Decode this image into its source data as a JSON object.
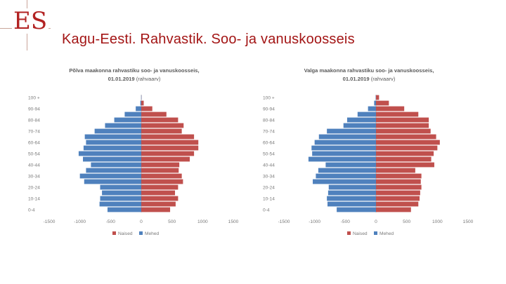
{
  "slide": {
    "logo_text": "ES",
    "title": "Kagu-Eesti. Rahvastik. Soo- ja vanuskoosseis"
  },
  "colors": {
    "female": "#c0504d",
    "male": "#4f81bd",
    "title": "#a31515"
  },
  "chart_data": [
    {
      "type": "bar",
      "orientation": "horizontal",
      "title_line1": "Põlva maakonna rahvastiku soo- ja vanuskoosseis,",
      "title_line2": "01.01.2019",
      "title_note": "(rahvaarv)",
      "categories": [
        "0-4",
        "5-9",
        "10-14",
        "15-19",
        "20-24",
        "25-29",
        "30-34",
        "35-39",
        "40-44",
        "45-49",
        "50-54",
        "55-59",
        "60-64",
        "65-69",
        "70-74",
        "75-79",
        "80-84",
        "85-89",
        "90-94",
        "95-99",
        "100 +"
      ],
      "category_labels": [
        "0-4",
        "",
        "10-14",
        "",
        "20-24",
        "",
        "30-34",
        "",
        "40-44",
        "",
        "50-54",
        "",
        "60-64",
        "",
        "70-74",
        "",
        "80-84",
        "",
        "90-94",
        "",
        "100 +"
      ],
      "series": [
        {
          "name": "Naised",
          "values": [
            470,
            560,
            600,
            550,
            600,
            680,
            660,
            610,
            620,
            790,
            860,
            930,
            930,
            860,
            660,
            690,
            600,
            410,
            180,
            40,
            5
          ]
        },
        {
          "name": "Mehed",
          "values": [
            -550,
            -680,
            -670,
            -640,
            -670,
            -930,
            -1000,
            -900,
            -820,
            -950,
            -1020,
            -940,
            -900,
            -920,
            -760,
            -590,
            -440,
            -270,
            -90,
            -15,
            -2
          ]
        }
      ],
      "xlim": [
        -1500,
        1500
      ],
      "xticks": [
        -1500,
        -1000,
        -500,
        0,
        500,
        1000,
        1500
      ]
    },
    {
      "type": "bar",
      "orientation": "horizontal",
      "title_line1": "Valga maakonna rahvastiku soo- ja vanuskoosseis,",
      "title_line2": "01.01.2019",
      "title_note": "(rahvaarv)",
      "categories": [
        "0-4",
        "5-9",
        "10-14",
        "15-19",
        "20-24",
        "25-29",
        "30-34",
        "35-39",
        "40-44",
        "45-49",
        "50-54",
        "55-59",
        "60-64",
        "65-69",
        "70-74",
        "75-79",
        "80-84",
        "85-89",
        "90-94",
        "95-99",
        "100 +"
      ],
      "category_labels": [
        "0-4",
        "",
        "10-14",
        "",
        "20-24",
        "",
        "30-34",
        "",
        "40-44",
        "",
        "50-54",
        "",
        "60-64",
        "",
        "70-74",
        "",
        "80-84",
        "",
        "90-94",
        "",
        "100 +"
      ],
      "series": [
        {
          "name": "Naised",
          "values": [
            570,
            690,
            710,
            720,
            740,
            730,
            740,
            640,
            950,
            900,
            940,
            1000,
            1040,
            980,
            890,
            860,
            860,
            690,
            460,
            210,
            50
          ]
        },
        {
          "name": "Mehed",
          "values": [
            -640,
            -790,
            -800,
            -780,
            -770,
            -1030,
            -980,
            -940,
            -820,
            -1100,
            -1040,
            -1050,
            -1000,
            -930,
            -800,
            -530,
            -470,
            -300,
            -130,
            -30,
            -5
          ]
        }
      ],
      "xlim": [
        -1500,
        1500
      ],
      "xticks": [
        -1500,
        -1000,
        -500,
        0,
        500,
        1000,
        1500
      ]
    }
  ],
  "legend": {
    "female_label": "Naised",
    "male_label": "Mehed"
  }
}
